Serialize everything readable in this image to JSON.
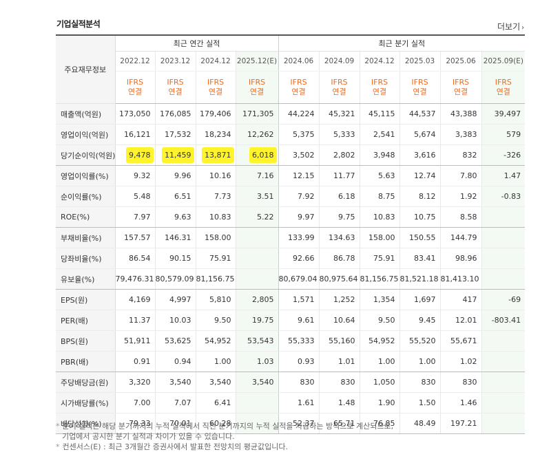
{
  "title": "기업실적분석",
  "more_label": "더보기",
  "header": {
    "corner": "주요재무정보",
    "annual_group": "최근 연간 실적",
    "quarter_group": "최근 분기 실적",
    "annual_periods": [
      "2022.12",
      "2023.12",
      "2024.12",
      "2025.12(E)"
    ],
    "quarter_periods": [
      "2024.06",
      "2024.09",
      "2024.12",
      "2025.03",
      "2025.06",
      "2025.09(E)"
    ],
    "ifrs_line1": "IFRS",
    "ifrs_line2": "연결"
  },
  "rows": [
    {
      "label": "매출액(억원)",
      "values": [
        "173,050",
        "176,085",
        "179,406",
        "171,305",
        "44,224",
        "45,321",
        "45,115",
        "44,537",
        "43,388",
        "39,497"
      ]
    },
    {
      "label": "영업이익(억원)",
      "values": [
        "16,121",
        "17,532",
        "18,234",
        "12,262",
        "5,375",
        "5,333",
        "2,541",
        "5,674",
        "3,383",
        "579"
      ]
    },
    {
      "label": "당기순이익(억원)",
      "values": [
        "9,478",
        "11,459",
        "13,871",
        "6,018",
        "3,502",
        "2,802",
        "3,948",
        "3,616",
        "832",
        "-326"
      ]
    },
    {
      "label": "영업이익률(%)",
      "values": [
        "9.32",
        "9.96",
        "10.16",
        "7.16",
        "12.15",
        "11.77",
        "5.63",
        "12.74",
        "7.80",
        "1.47"
      ]
    },
    {
      "label": "순이익률(%)",
      "values": [
        "5.48",
        "6.51",
        "7.73",
        "3.51",
        "7.92",
        "6.18",
        "8.75",
        "8.12",
        "1.92",
        "-0.83"
      ]
    },
    {
      "label": "ROE(%)",
      "values": [
        "7.97",
        "9.63",
        "10.83",
        "5.22",
        "9.97",
        "9.75",
        "10.83",
        "10.75",
        "8.58",
        ""
      ]
    },
    {
      "label": "부채비율(%)",
      "values": [
        "157.57",
        "146.31",
        "158.00",
        "",
        "133.99",
        "134.63",
        "158.00",
        "150.55",
        "144.79",
        ""
      ]
    },
    {
      "label": "당좌비율(%)",
      "values": [
        "86.54",
        "90.15",
        "75.91",
        "",
        "92.66",
        "86.78",
        "75.91",
        "83.41",
        "98.96",
        ""
      ]
    },
    {
      "label": "유보율(%)",
      "values": [
        "79,476.31",
        "80,579.09",
        "81,156.75",
        "",
        "80,679.04",
        "80,975.64",
        "81,156.75",
        "81,521.18",
        "81,413.10",
        ""
      ]
    },
    {
      "label": "EPS(원)",
      "values": [
        "4,169",
        "4,997",
        "5,810",
        "2,805",
        "1,571",
        "1,252",
        "1,354",
        "1,697",
        "417",
        "-69"
      ]
    },
    {
      "label": "PER(배)",
      "values": [
        "11.37",
        "10.03",
        "9.50",
        "19.75",
        "9.61",
        "10.64",
        "9.50",
        "9.45",
        "12.01",
        "-803.41"
      ]
    },
    {
      "label": "BPS(원)",
      "values": [
        "51,911",
        "53,625",
        "54,952",
        "53,543",
        "55,333",
        "55,160",
        "54,952",
        "55,520",
        "55,671",
        ""
      ]
    },
    {
      "label": "PBR(배)",
      "values": [
        "0.91",
        "0.94",
        "1.00",
        "1.03",
        "0.93",
        "1.01",
        "1.00",
        "1.00",
        "1.02",
        ""
      ]
    },
    {
      "label": "주당배당금(원)",
      "values": [
        "3,320",
        "3,540",
        "3,540",
        "3,540",
        "830",
        "830",
        "1,050",
        "830",
        "830",
        ""
      ]
    },
    {
      "label": "시가배당률(%)",
      "values": [
        "7.00",
        "7.07",
        "6.41",
        "",
        "1.61",
        "1.48",
        "1.90",
        "1.50",
        "1.46",
        ""
      ]
    },
    {
      "label": "배당성향(%)",
      "values": [
        "79.33",
        "70.01",
        "60.28",
        "",
        "52.37",
        "65.71",
        "76.85",
        "48.49",
        "197.21",
        ""
      ]
    }
  ],
  "notes": [
    "분기 실적은 해당 분기까지의 누적 실적에서 직전 분기까지의 누적 실적을 차감하는 방식으로 계산되므로,",
    "기업에서 공시한 분기 실적과 차이가 있을 수 있습니다.",
    "컨센서스(E) : 최근 3개월간 증권사에서 발표한 전망치의 평균값입니다."
  ],
  "colors": {
    "negative": "#e20000",
    "ifrs": "#f26a1b",
    "highlight": "#fff32b",
    "estimate_bg": "#f3faf3"
  }
}
